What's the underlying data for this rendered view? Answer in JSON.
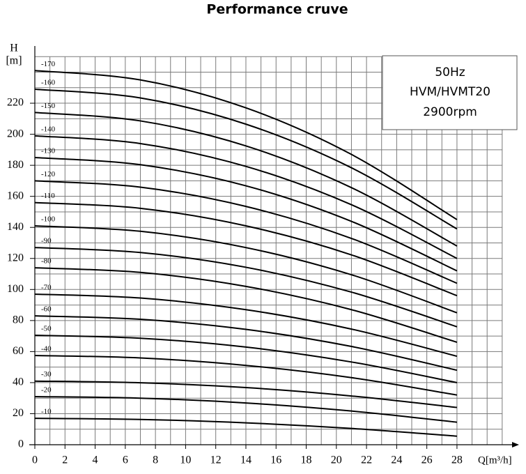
{
  "chart_data": {
    "type": "line",
    "title": "Performance cruve",
    "y_label_top": "H",
    "y_label": "[m]",
    "x_label": "Q[m³/h]",
    "annotation": [
      "50Hz",
      "HVM/HVMT20",
      "2900rpm"
    ],
    "x": [
      0,
      7,
      14,
      21,
      28
    ],
    "xlim": [
      0,
      31
    ],
    "ylim": [
      0,
      250
    ],
    "xticks": [
      0,
      2,
      4,
      6,
      8,
      10,
      12,
      14,
      16,
      18,
      20,
      22,
      24,
      26,
      28
    ],
    "yticks": [
      0,
      20,
      40,
      60,
      80,
      100,
      120,
      140,
      160,
      180,
      200,
      220
    ],
    "xgrid": [
      1,
      2,
      3,
      4,
      5,
      6,
      7,
      8,
      9,
      10,
      11,
      12,
      13,
      14,
      15,
      16,
      17,
      18,
      19,
      20,
      21,
      22,
      23,
      24,
      25,
      26,
      27,
      28,
      29,
      30,
      31
    ],
    "ygrid": [
      10,
      20,
      30,
      40,
      50,
      60,
      70,
      80,
      90,
      100,
      110,
      120,
      130,
      140,
      150,
      160,
      170,
      180,
      190,
      200,
      210,
      220,
      230,
      240,
      250
    ],
    "series": [
      {
        "name": "-170",
        "color": "#000000",
        "values": [
          241,
          235,
          217,
          187,
          145
        ]
      },
      {
        "name": "-160",
        "color": "#000000",
        "values": [
          229,
          223.4,
          206.5,
          178.4,
          139
        ]
      },
      {
        "name": "-150",
        "color": "#000000",
        "values": [
          214,
          208.6,
          192.5,
          165.6,
          128
        ]
      },
      {
        "name": "-140",
        "color": "#000000",
        "values": [
          199,
          194,
          179.3,
          154.6,
          120
        ]
      },
      {
        "name": "-130",
        "color": "#000000",
        "values": [
          185,
          180.4,
          166.8,
          143.9,
          112
        ]
      },
      {
        "name": "-120",
        "color": "#000000",
        "values": [
          170,
          165.9,
          153.5,
          132.9,
          104
        ]
      },
      {
        "name": "-110",
        "color": "#000000",
        "values": [
          156,
          152.3,
          141,
          122.3,
          96
        ]
      },
      {
        "name": "-100",
        "color": "#000000",
        "values": [
          141,
          137.5,
          127,
          109.5,
          85
        ]
      },
      {
        "name": "-90",
        "color": "#000000",
        "values": [
          127,
          123.8,
          114.3,
          98.3,
          76
        ]
      },
      {
        "name": "-80",
        "color": "#000000",
        "values": [
          114,
          111,
          102,
          87,
          66
        ]
      },
      {
        "name": "-70",
        "color": "#000000",
        "values": [
          97,
          94.5,
          87,
          74.5,
          57
        ]
      },
      {
        "name": "-60",
        "color": "#000000",
        "values": [
          83,
          80.8,
          74.3,
          63.3,
          48
        ]
      },
      {
        "name": "-50",
        "color": "#000000",
        "values": [
          70.5,
          68.6,
          62.9,
          53.3,
          40
        ]
      },
      {
        "name": "-40",
        "color": "#000000",
        "values": [
          57.5,
          55.9,
          51.1,
          43.2,
          32
        ]
      },
      {
        "name": "-30",
        "color": "#000000",
        "values": [
          41,
          39.9,
          36.8,
          31.4,
          24
        ]
      },
      {
        "name": "-20",
        "color": "#000000",
        "values": [
          31,
          30,
          26.9,
          21.7,
          14.5
        ]
      },
      {
        "name": "-10",
        "color": "#000000",
        "values": [
          17,
          16.3,
          14.1,
          10.5,
          5.5
        ]
      }
    ],
    "grid": true
  }
}
